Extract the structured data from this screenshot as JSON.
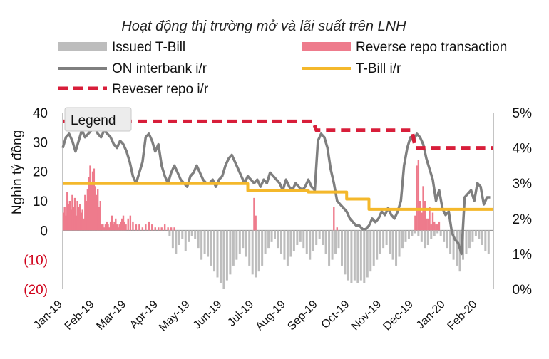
{
  "chart_data": {
    "type": "bar+line",
    "title": "Hoạt động thị trường mở và lãi suất trên LNH",
    "ylabel": "Nghìn tỷ đồng",
    "ylim": [
      -20,
      40
    ],
    "y_ticks": [
      "40",
      "30",
      "20",
      "10",
      "0",
      "(10)",
      "(20)"
    ],
    "y2lim": [
      0,
      5
    ],
    "y2_ticks": [
      "5%",
      "4%",
      "3%",
      "2%",
      "1%",
      "0%"
    ],
    "x_labels": [
      "Jan-19",
      "Feb-19",
      "Mar-19",
      "Apr-19",
      "May-19",
      "Jun-19",
      "Jul-19",
      "Aug-19",
      "Sep-19",
      "Oct-19",
      "Nov-19",
      "Dec-19",
      "Jan-20",
      "Feb-20"
    ],
    "tooltip": "Legend",
    "legend": [
      {
        "name": "Issued T-Bill",
        "style": "bar",
        "color": "#bdbdbd"
      },
      {
        "name": "Reverse repo transaction",
        "style": "bar",
        "color": "#ee7b8c"
      },
      {
        "name": "ON interbank i/r",
        "style": "line",
        "color": "#7f7f7f"
      },
      {
        "name": "T-Bill i/r",
        "style": "line",
        "color": "#f4b82b"
      },
      {
        "name": "Reveser repo i/r",
        "style": "dash",
        "color": "#d81e3a"
      }
    ],
    "series_reverse_repo": {
      "x": [
        0.02,
        0.06,
        0.1,
        0.14,
        0.18,
        0.22,
        0.26,
        0.3,
        0.34,
        0.38,
        0.42,
        0.46,
        0.5,
        0.54,
        0.58,
        0.62,
        0.66,
        0.7,
        0.74,
        0.78,
        0.82,
        0.86,
        0.9,
        0.94,
        0.98,
        1.02,
        1.06,
        1.1,
        1.14,
        1.18,
        1.22,
        1.26,
        1.3,
        1.34,
        1.38,
        1.42,
        1.46,
        1.5,
        1.54,
        1.58,
        1.62,
        1.66,
        1.7,
        1.74,
        1.78,
        1.82,
        1.86,
        1.9,
        1.94,
        1.98,
        2.05,
        2.12,
        2.2,
        2.3,
        2.4,
        2.5,
        2.6,
        2.7,
        2.8,
        2.9,
        3.0,
        3.1,
        3.2,
        3.3,
        3.4,
        3.5,
        6.0,
        6.05,
        8.5,
        8.6,
        11.05,
        11.1,
        11.15,
        11.2,
        11.25,
        11.3,
        11.35,
        11.4,
        11.45,
        11.5,
        11.55,
        11.6,
        11.65,
        11.7,
        11.75,
        11.8
      ],
      "values": [
        6,
        8,
        5,
        13,
        9,
        10,
        7,
        12,
        8,
        11,
        5,
        10,
        8,
        9,
        6,
        7,
        4,
        12,
        10,
        14,
        18,
        22,
        16,
        20,
        21,
        15,
        12,
        14,
        8,
        10,
        2,
        2,
        1,
        2,
        3,
        2,
        1,
        3,
        5,
        2,
        3,
        4,
        2,
        1,
        2,
        3,
        4,
        5,
        3,
        2,
        4,
        5,
        3,
        2,
        2,
        1,
        2,
        3,
        2,
        1,
        1,
        1,
        2,
        1,
        1,
        1,
        11,
        5,
        8,
        1,
        5,
        22,
        24,
        10,
        6,
        15,
        10,
        4,
        4,
        8,
        2,
        6,
        3,
        2,
        2,
        3
      ]
    },
    "series_issued_tbill": {
      "x": [
        3.35,
        3.45,
        3.55,
        3.65,
        3.75,
        3.85,
        3.95,
        4.05,
        4.15,
        4.25,
        4.35,
        4.45,
        4.55,
        4.65,
        4.75,
        4.85,
        4.95,
        5.05,
        5.15,
        5.25,
        5.35,
        5.45,
        5.55,
        5.65,
        5.75,
        5.85,
        5.95,
        6.05,
        6.15,
        6.25,
        6.35,
        6.45,
        6.55,
        6.65,
        6.75,
        6.85,
        6.95,
        7.05,
        7.15,
        7.25,
        7.35,
        7.45,
        7.55,
        7.65,
        7.75,
        7.85,
        7.95,
        8.05,
        8.15,
        8.25,
        8.35,
        8.45,
        8.55,
        8.65,
        8.75,
        8.85,
        8.95,
        9.05,
        9.15,
        9.25,
        9.35,
        9.45,
        9.55,
        9.65,
        9.75,
        9.85,
        9.95,
        10.05,
        10.15,
        10.25,
        10.35,
        10.45,
        10.55,
        10.65,
        10.75,
        10.85,
        10.95,
        11.05,
        11.15,
        11.25,
        11.35,
        11.45,
        11.55,
        11.65,
        11.75,
        11.85,
        11.95,
        12.05,
        12.15,
        12.25,
        12.35,
        12.45,
        12.55,
        12.65,
        12.75,
        12.85,
        12.95,
        13.05,
        13.15,
        13.25,
        13.35
      ],
      "values": [
        -2,
        -6,
        -8,
        -5,
        -3,
        -7,
        -4,
        -2,
        -3,
        -6,
        -10,
        -8,
        -9,
        -12,
        -14,
        -16,
        -18,
        -20,
        -17,
        -15,
        -12,
        -10,
        -8,
        -6,
        -9,
        -12,
        -15,
        -16,
        -14,
        -12,
        -8,
        -6,
        -4,
        -3,
        -6,
        -8,
        -10,
        -12,
        -9,
        -7,
        -5,
        -4,
        -6,
        -8,
        -10,
        -7,
        -5,
        -3,
        -5,
        -8,
        -12,
        -10,
        -8,
        -6,
        -12,
        -15,
        -17,
        -18,
        -17,
        -18,
        -17,
        -18,
        -16,
        -14,
        -12,
        -10,
        -8,
        -6,
        -5,
        -8,
        -10,
        -12,
        -9,
        -6,
        -4,
        -3,
        -2,
        -1,
        -2,
        -4,
        -6,
        -5,
        -3,
        -2,
        -1,
        -2,
        -4,
        -6,
        -8,
        -10,
        -12,
        -14,
        -10,
        -8,
        -6,
        -4,
        -2,
        -3,
        -5,
        -7,
        -8
      ]
    },
    "series_on_interbank": {
      "x": [
        0.0,
        0.1,
        0.2,
        0.3,
        0.4,
        0.5,
        0.6,
        0.7,
        0.8,
        0.9,
        1.0,
        1.1,
        1.2,
        1.3,
        1.4,
        1.5,
        1.6,
        1.7,
        1.8,
        1.9,
        2.0,
        2.1,
        2.2,
        2.3,
        2.4,
        2.5,
        2.6,
        2.7,
        2.8,
        2.9,
        3.0,
        3.1,
        3.2,
        3.3,
        3.4,
        3.5,
        3.6,
        3.7,
        3.8,
        3.9,
        4.0,
        4.1,
        4.2,
        4.3,
        4.4,
        4.5,
        4.6,
        4.7,
        4.8,
        4.9,
        5.0,
        5.1,
        5.2,
        5.3,
        5.4,
        5.5,
        5.6,
        5.7,
        5.8,
        5.9,
        6.0,
        6.1,
        6.2,
        6.3,
        6.4,
        6.5,
        6.6,
        6.7,
        6.8,
        6.9,
        7.0,
        7.1,
        7.2,
        7.3,
        7.4,
        7.5,
        7.6,
        7.7,
        7.8,
        7.9,
        8.0,
        8.1,
        8.2,
        8.3,
        8.4,
        8.5,
        8.6,
        8.7,
        8.8,
        8.9,
        9.0,
        9.1,
        9.2,
        9.3,
        9.4,
        9.5,
        9.6,
        9.7,
        9.8,
        9.9,
        10.0,
        10.1,
        10.2,
        10.3,
        10.4,
        10.5,
        10.6,
        10.7,
        10.8,
        10.9,
        11.0,
        11.1,
        11.2,
        11.3,
        11.4,
        11.5,
        11.6,
        11.7,
        11.8,
        11.9,
        12.0,
        12.1,
        12.2,
        12.3,
        12.4,
        12.5,
        12.6,
        12.7,
        12.8,
        12.9,
        13.0,
        13.1,
        13.2,
        13.3,
        13.4
      ],
      "values": [
        4.0,
        4.3,
        4.4,
        4.2,
        3.9,
        4.2,
        4.5,
        4.3,
        4.4,
        4.5,
        4.6,
        4.4,
        4.3,
        4.5,
        4.4,
        4.3,
        4.1,
        4.0,
        4.2,
        4.1,
        3.9,
        3.6,
        3.2,
        3.0,
        3.3,
        3.6,
        4.3,
        4.4,
        4.2,
        3.9,
        4.1,
        3.5,
        3.2,
        3.0,
        3.3,
        3.5,
        3.3,
        3.1,
        3.0,
        2.9,
        3.2,
        3.3,
        3.5,
        3.3,
        3.1,
        3.0,
        3.0,
        3.1,
        2.9,
        3.1,
        3.2,
        3.5,
        3.7,
        3.8,
        3.6,
        3.4,
        3.2,
        3.0,
        3.2,
        3.1,
        3.0,
        3.1,
        2.9,
        3.1,
        3.0,
        3.3,
        3.2,
        3.1,
        3.0,
        2.8,
        3.1,
        2.9,
        2.8,
        3.0,
        2.9,
        2.8,
        2.9,
        3.1,
        2.9,
        2.8,
        4.2,
        4.4,
        4.3,
        4.0,
        3.4,
        3.0,
        2.5,
        2.4,
        2.3,
        2.2,
        2.0,
        1.9,
        1.8,
        1.8,
        1.7,
        1.7,
        1.8,
        2.0,
        1.9,
        2.0,
        2.2,
        2.1,
        2.3,
        2.1,
        2.0,
        2.2,
        2.5,
        3.5,
        4.0,
        4.3,
        4.2,
        4.4,
        4.3,
        4.1,
        3.7,
        3.4,
        3.1,
        2.5,
        2.8,
        2.3,
        2.1,
        2.2,
        1.6,
        1.4,
        1.3,
        1.0,
        2.6,
        2.7,
        2.8,
        2.5,
        3.0,
        2.9,
        2.4,
        2.6,
        2.6
      ]
    },
    "series_tbill_ir": {
      "x": [
        0.0,
        5.8,
        5.8,
        7.7,
        7.7,
        8.9,
        8.9,
        9.6,
        9.6,
        13.5
      ],
      "values": [
        2.99,
        2.99,
        2.79,
        2.79,
        2.75,
        2.75,
        2.55,
        2.55,
        2.26,
        2.26
      ]
    },
    "series_reverse_repo_ir": {
      "x": [
        0.0,
        7.85,
        7.95,
        10.95,
        11.05,
        13.5
      ],
      "values": [
        4.75,
        4.75,
        4.5,
        4.5,
        4.0,
        4.0
      ]
    }
  }
}
